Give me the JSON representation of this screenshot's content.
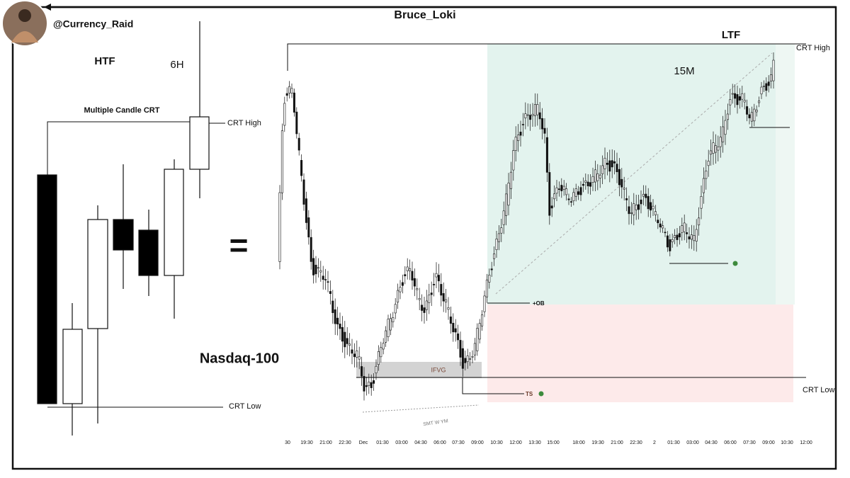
{
  "header": {
    "handle": "@Currency_Raid",
    "author": "Bruce_Loki"
  },
  "htf": {
    "title": "HTF",
    "timeframe": "6H",
    "range_label": "Multiple Candle CRT",
    "high_label": "CRT High",
    "low_label": "CRT Low"
  },
  "equals": "=",
  "instrument": "Nasdaq-100",
  "ltf": {
    "title": "LTF",
    "timeframe": "15M",
    "high_label": "CRT High",
    "low_label": "CRT Low",
    "ob_label": "+OB",
    "fvg_label": "IFVG",
    "ts_label": "TS",
    "smt_label": "SMT W YM"
  },
  "time_labels": [
    "30",
    "19:30",
    "21:00",
    "22:30",
    "Dec",
    "01:30",
    "03:00",
    "04:30",
    "06:00",
    "07:30",
    "09:00",
    "10:30",
    "12:00",
    "13:30",
    "15:00",
    "18:00",
    "19:30",
    "21:00",
    "22:30",
    "2",
    "01:30",
    "03:00",
    "04:30",
    "06:00",
    "07:30",
    "09:00",
    "10:30",
    "12:00"
  ]
}
